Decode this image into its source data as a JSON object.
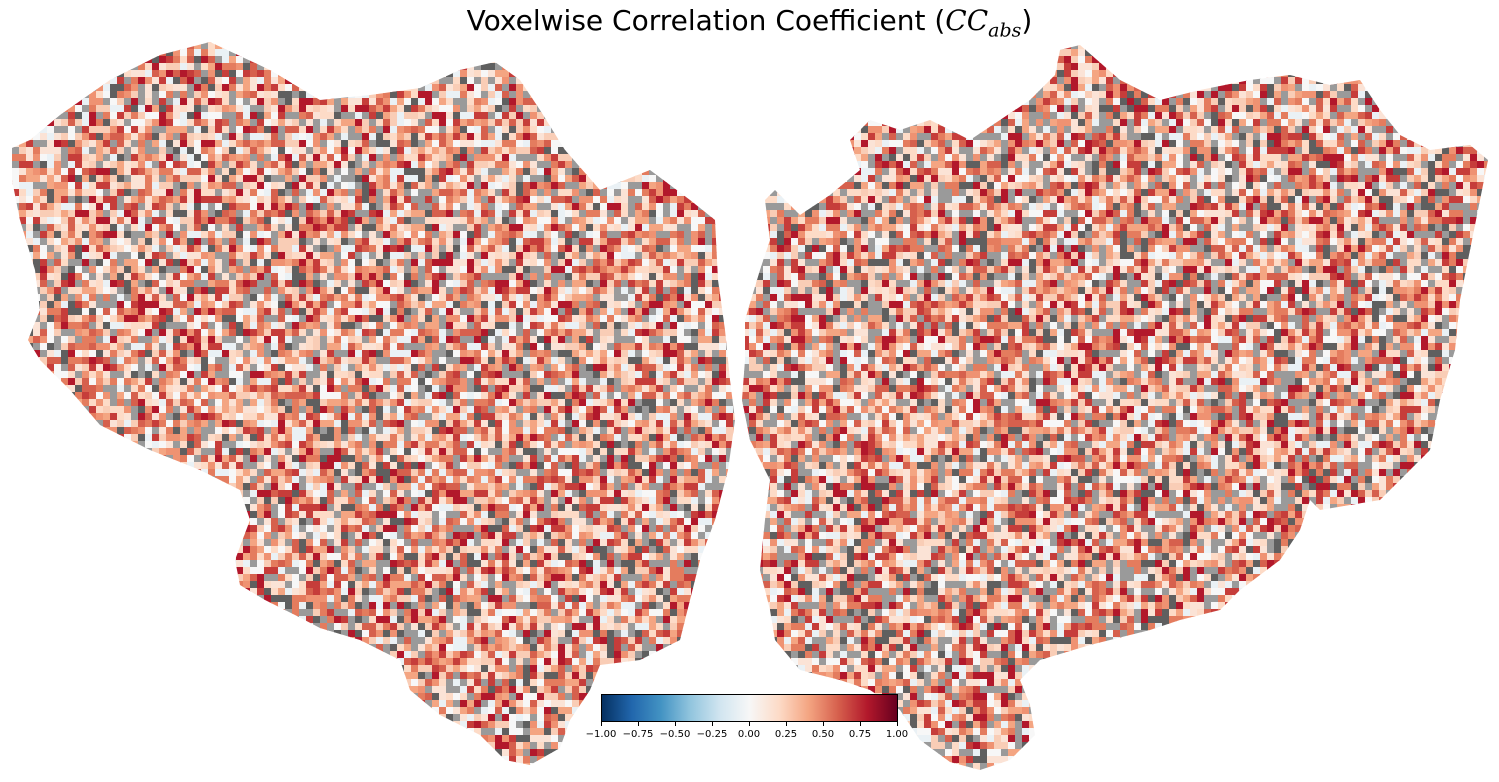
{
  "title": {
    "prefix": "Voxelwise Correlation Coefficient (",
    "symbol": "CC",
    "subscript": "abs",
    "suffix": ")"
  },
  "colormap": {
    "name": "RdBu_r",
    "stops": [
      "#053061",
      "#2166ac",
      "#4393c3",
      "#92c5de",
      "#d1e5f0",
      "#f7f7f7",
      "#fddbc7",
      "#f4a582",
      "#d6604d",
      "#b2182b",
      "#67001f"
    ],
    "range": [
      -1.0,
      1.0
    ],
    "tick_values": [
      -1.0,
      -0.75,
      -0.5,
      -0.25,
      0.0,
      0.25,
      0.5,
      0.75,
      1.0
    ],
    "tick_labels": [
      "−1.00",
      "−0.75",
      "−0.50",
      "−0.25",
      "0.00",
      "0.25",
      "0.50",
      "0.75",
      "1.00"
    ]
  },
  "image": {
    "description_type": "cortical flatmap, two hemispheres",
    "masked_colors": [
      "#9a9a9a",
      "#5f5f5f"
    ]
  }
}
